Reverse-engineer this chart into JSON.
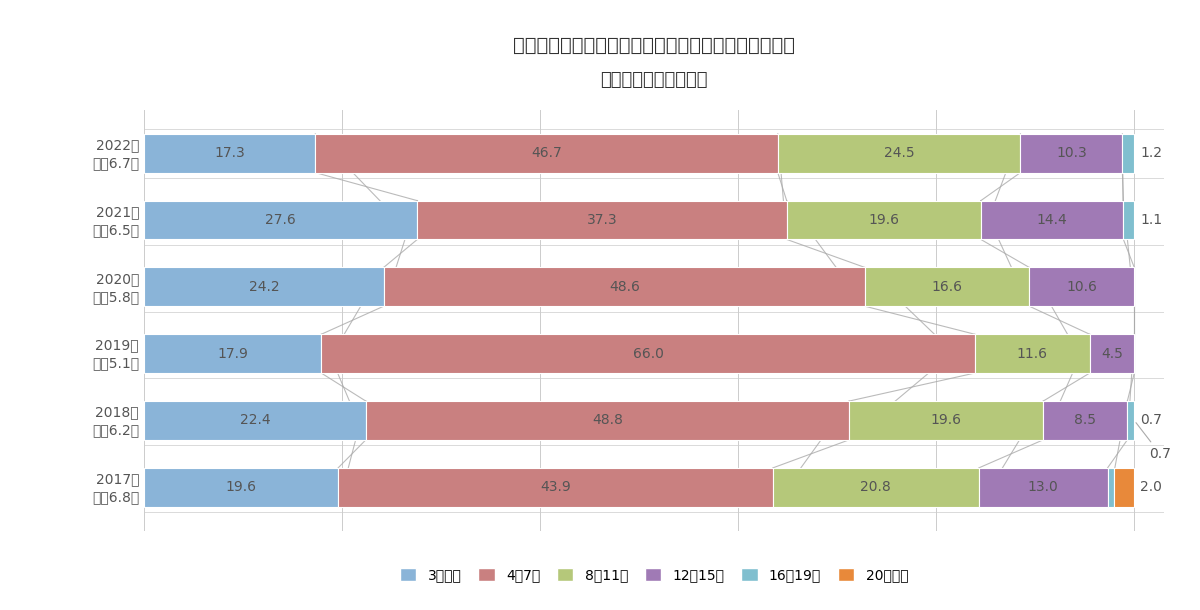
{
  "title": "中部圏　新築マンションの徒歩時間別供給シェア推移",
  "subtitle": "（徒歩物件のみ集計）",
  "years": [
    "2017年",
    "2018年",
    "2019年",
    "2020年",
    "2021年",
    "2022年"
  ],
  "year_subtitles": [
    "平均6.8分",
    "平均6.2分",
    "平均5.1分",
    "平均5.8分",
    "平均6.5分",
    "平均6.7分"
  ],
  "categories": [
    "3分以内",
    "4〜7分",
    "8〜11分",
    "12〜15分",
    "16〜19分",
    "20分以上"
  ],
  "colors": [
    "#8ab4d8",
    "#c98080",
    "#b5c87a",
    "#a07ab5",
    "#80bfcf",
    "#e8893a"
  ],
  "data": [
    [
      19.6,
      43.9,
      20.8,
      13.0,
      0.7,
      2.0
    ],
    [
      22.4,
      48.8,
      19.6,
      8.5,
      0.7,
      0.0
    ],
    [
      17.9,
      66.0,
      11.6,
      4.5,
      0.0,
      0.0
    ],
    [
      24.2,
      48.6,
      16.6,
      10.6,
      0.0,
      0.0
    ],
    [
      27.6,
      37.3,
      19.6,
      14.4,
      1.1,
      0.0
    ],
    [
      17.3,
      46.7,
      24.5,
      10.3,
      1.2,
      0.0
    ]
  ],
  "background_color": "#ffffff",
  "grid_color": "#cccccc",
  "text_color": "#555555",
  "title_fontsize": 14,
  "label_fontsize": 10,
  "ylabel_fontsize": 10,
  "legend_fontsize": 10
}
